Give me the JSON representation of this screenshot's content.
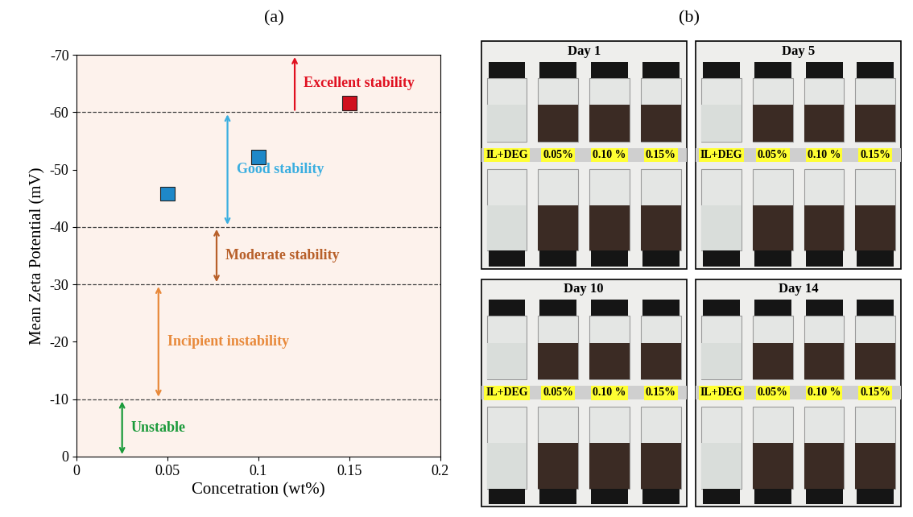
{
  "chart_data": {
    "type": "scatter",
    "panel_label": "(a)",
    "x_label": "Concetration (wt%)",
    "y_label": "Mean Zeta Potential (mV)",
    "x": [
      0.05,
      0.1,
      0.15
    ],
    "values": [
      -45.8,
      -52.2,
      -61.6
    ],
    "colors": [
      "#1e88c8",
      "#1e88c8",
      "#d0101e"
    ],
    "marker": "square",
    "xlim": [
      0,
      0.2
    ],
    "xticks": [
      0,
      0.05,
      0.1,
      0.15,
      0.2
    ],
    "ylim": [
      0,
      -70
    ],
    "yticks": [
      0,
      -10,
      -20,
      -30,
      -40,
      -50,
      -60,
      -70
    ],
    "bands": [
      {
        "text": "Unstable",
        "color": "#1a9a3a",
        "x": 0.025,
        "from": 0,
        "to": -10
      },
      {
        "text": "Incipient instability",
        "color": "#e8893a",
        "x": 0.045,
        "from": -10,
        "to": -30
      },
      {
        "text": "Moderate stability",
        "color": "#b8602a",
        "x": 0.077,
        "from": -30,
        "to": -40
      },
      {
        "text": "Good stability",
        "color": "#3aaee0",
        "x": 0.083,
        "from": -40,
        "to": -60
      },
      {
        "text": "Excellent stability",
        "color": "#e01020",
        "x": 0.12,
        "from": -60,
        "to": -70
      }
    ]
  },
  "photo_panel": {
    "panel_label": "(b)",
    "photos": [
      {
        "title": "Day 1"
      },
      {
        "title": "Day 5"
      },
      {
        "title": "Day 10"
      },
      {
        "title": "Day 14"
      }
    ],
    "samples": [
      {
        "label": "IL+DEG",
        "color": "#d9ddda"
      },
      {
        "label": "0.05%",
        "color": "#3b2b24"
      },
      {
        "label": "0.10 %",
        "color": "#3b2b24"
      },
      {
        "label": "0.15%",
        "color": "#3b2b24"
      }
    ]
  }
}
